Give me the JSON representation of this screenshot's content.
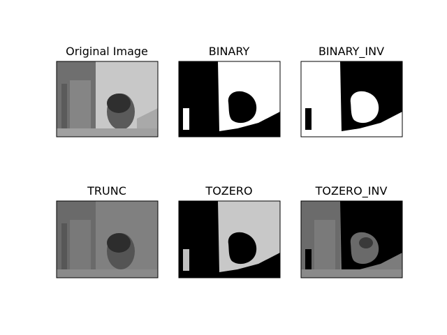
{
  "panels": [
    {
      "title": "Original Image",
      "variant": "original"
    },
    {
      "title": "BINARY",
      "variant": "binary"
    },
    {
      "title": "BINARY_INV",
      "variant": "binary_inv"
    },
    {
      "title": "TRUNC",
      "variant": "trunc"
    },
    {
      "title": "TOZERO",
      "variant": "tozero"
    },
    {
      "title": "TOZERO_INV",
      "variant": "tozero_inv"
    }
  ],
  "colors": {
    "background": "#ffffff",
    "frame": "#000000",
    "white": "#ffffff",
    "black": "#000000",
    "gray_light": "#bdbdbd",
    "gray_mid": "#7a7a7a",
    "gray_dark": "#4a4a4a"
  }
}
